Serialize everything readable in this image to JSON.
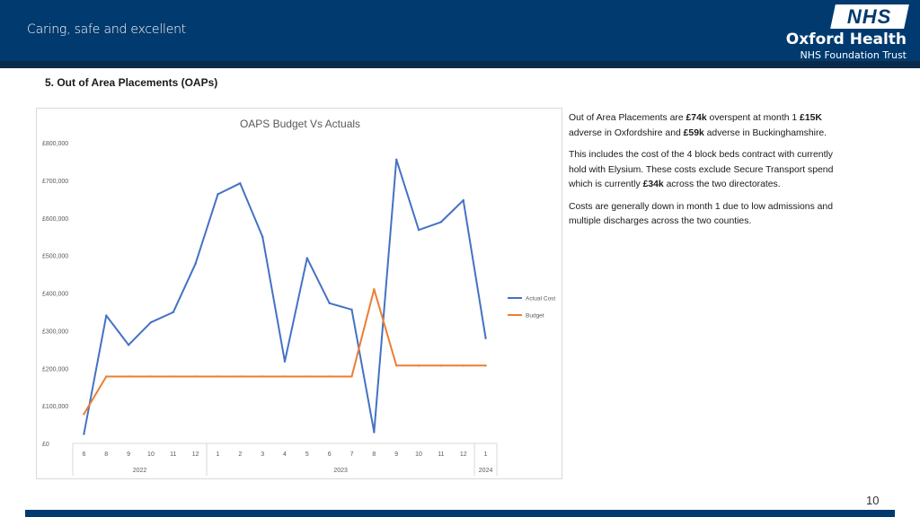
{
  "header": {
    "tagline": "Caring, safe and excellent",
    "logo_text": "NHS",
    "org_name": "Oxford Health",
    "org_sub": "NHS Foundation Trust"
  },
  "section_title": "5. Out of Area Placements (OAPs)",
  "notes": {
    "p1": [
      {
        "t": "Out of Area Placements are ",
        "b": false
      },
      {
        "t": "£74k",
        "b": true
      },
      {
        "t": " overspent at month 1 ",
        "b": false
      },
      {
        "t": "£15K",
        "b": true
      },
      {
        "t": " adverse in Oxfordshire and ",
        "b": false
      },
      {
        "t": "£59k",
        "b": true
      },
      {
        "t": " adverse in Buckinghamshire.",
        "b": false
      }
    ],
    "p2": [
      {
        "t": "This includes the cost of the 4 block beds contract with currently hold with Elysium.  These costs exclude Secure Transport spend which is currently ",
        "b": false
      },
      {
        "t": "£34k",
        "b": true
      },
      {
        "t": " across the two directorates.",
        "b": false
      }
    ],
    "p3": [
      {
        "t": "Costs are generally down in month 1 due to low admissions and multiple discharges across the two counties.",
        "b": false
      }
    ]
  },
  "page_number": "10",
  "colors": {
    "actual": "#4472c4",
    "budget": "#ed7d31",
    "brand": "#003a6e"
  },
  "chart_data": {
    "type": "line",
    "title": "OAPS Budget Vs Actuals",
    "categories": [
      "6",
      "8",
      "9",
      "10",
      "11",
      "12",
      "1",
      "2",
      "3",
      "4",
      "5",
      "6",
      "7",
      "8",
      "9",
      "10",
      "11",
      "12",
      "1"
    ],
    "groups": [
      {
        "label": "2022",
        "start": 0,
        "end": 5
      },
      {
        "label": "2023",
        "start": 6,
        "end": 17
      },
      {
        "label": "2024",
        "start": 18,
        "end": 18
      }
    ],
    "y_ticks": [
      "£0",
      "£100,000",
      "£200,000",
      "£300,000",
      "£400,000",
      "£500,000",
      "£600,000",
      "£700,000",
      "£800,000"
    ],
    "ylim": [
      0,
      800000
    ],
    "series": [
      {
        "name": "Actual Cost",
        "color": "#4472c4",
        "values": [
          25000,
          340000,
          262000,
          322000,
          349000,
          478000,
          663000,
          692000,
          550000,
          218000,
          493000,
          373000,
          356000,
          30000,
          755000,
          568000,
          589000,
          647000,
          280000
        ]
      },
      {
        "name": "Budget",
        "color": "#ed7d31",
        "values": [
          78000,
          178000,
          178000,
          178000,
          178000,
          178000,
          178000,
          178000,
          178000,
          178000,
          178000,
          178000,
          178000,
          410000,
          207000,
          207000,
          207000,
          207000,
          207000
        ]
      }
    ]
  }
}
